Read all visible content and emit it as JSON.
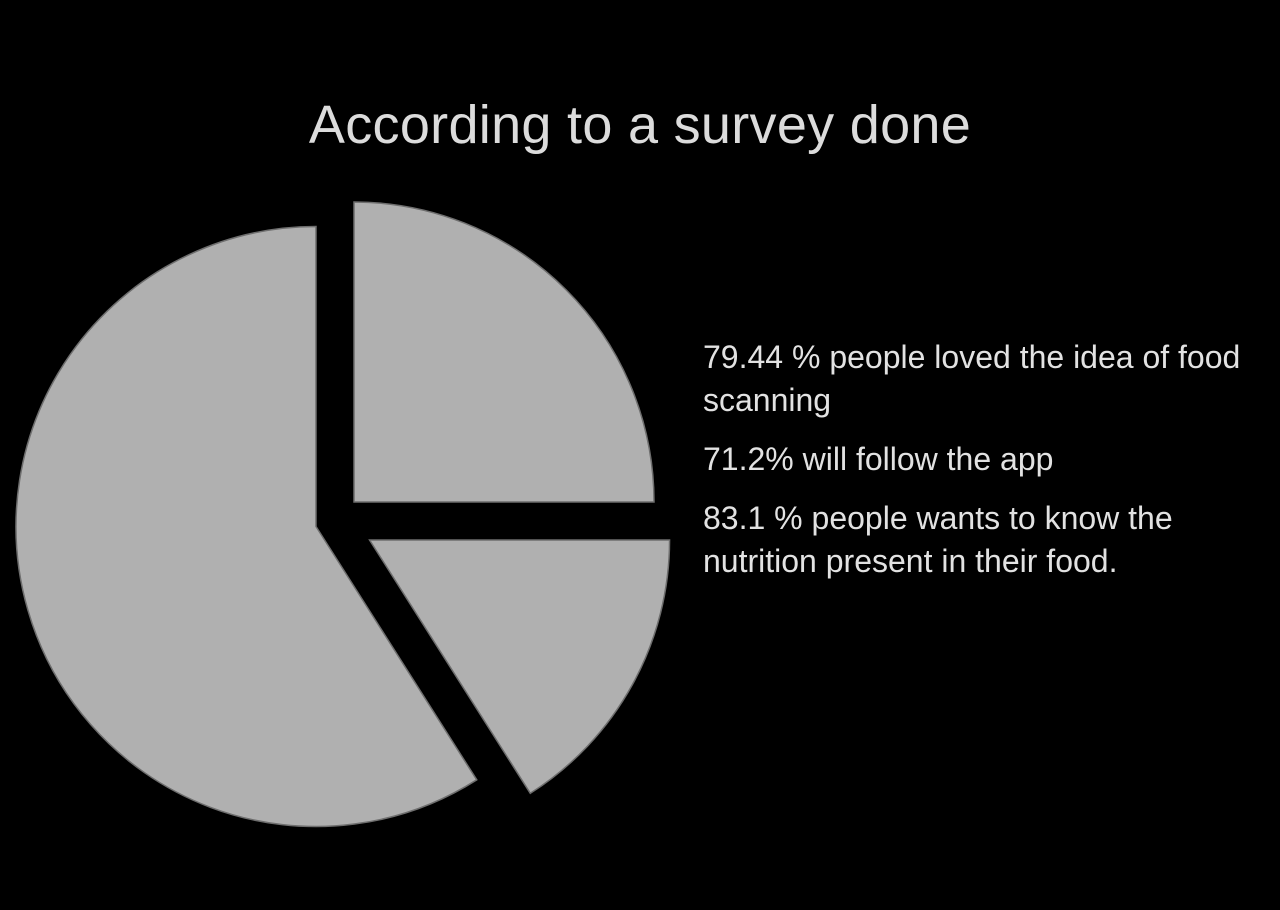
{
  "title": "According to a survey done",
  "chart_data": {
    "type": "pie",
    "title": "According to a survey done",
    "slices": [
      {
        "value": 25
      },
      {
        "value": 16
      },
      {
        "value": 59
      }
    ],
    "colors": {
      "slice": "#b0b0b0",
      "background": "#000000",
      "text": "#e2e2e2"
    }
  },
  "stats": [
    {
      "text": "79.44 % people loved the idea of food scanning"
    },
    {
      "text": "71.2% will follow the app"
    },
    {
      "text": "83.1 % people wants to know the nutrition present in their food."
    }
  ]
}
